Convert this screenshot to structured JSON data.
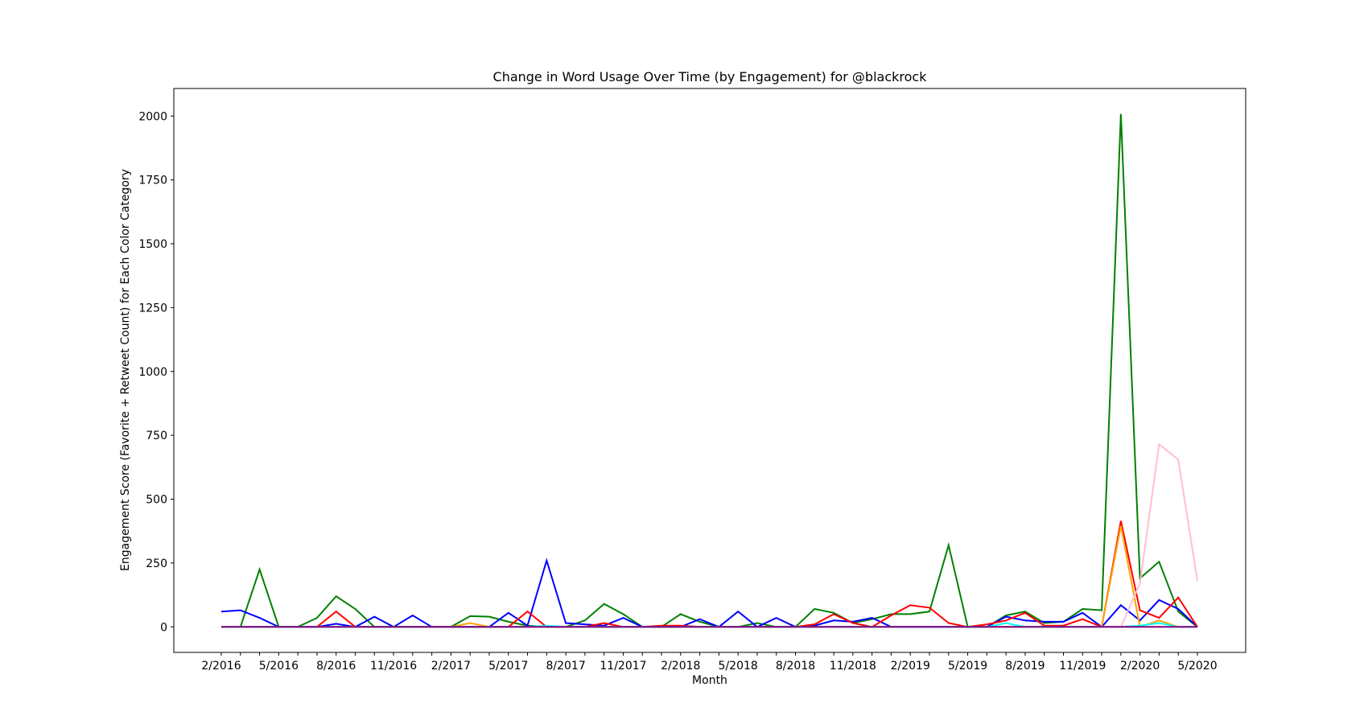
{
  "chart_data": {
    "type": "line",
    "title": "Change in Word Usage Over Time (by Engagement) for @blackrock",
    "xlabel": "Month",
    "ylabel": "Engagement Score (Favorite + Retweet Count) for Each Color Category",
    "categories": [
      "2/2016",
      null,
      null,
      "5/2016",
      null,
      null,
      "8/2016",
      null,
      null,
      "11/2016",
      null,
      null,
      "2/2017",
      null,
      null,
      "5/2017",
      null,
      null,
      "8/2017",
      null,
      null,
      "11/2017",
      null,
      null,
      "2/2018",
      null,
      null,
      "5/2018",
      null,
      null,
      "8/2018",
      null,
      null,
      "11/2018",
      null,
      null,
      "2/2019",
      null,
      null,
      "5/2019",
      null,
      null,
      "8/2019",
      null,
      null,
      "11/2019",
      null,
      null,
      "2/2020",
      null,
      null,
      "5/2020"
    ],
    "ylim": [
      -100,
      2108
    ],
    "yticks": [
      0,
      250,
      500,
      750,
      1000,
      1250,
      1500,
      1750,
      2000
    ],
    "grid": false,
    "series": [
      {
        "color": "green",
        "values": [
          null,
          0,
          225,
          0,
          0,
          35,
          120,
          70,
          0,
          0,
          0,
          0,
          0,
          42,
          40,
          20,
          5,
          0,
          0,
          25,
          90,
          50,
          0,
          0,
          50,
          20,
          0,
          0,
          15,
          0,
          0,
          70,
          55,
          15,
          30,
          50,
          50,
          60,
          320,
          0,
          0,
          45,
          60,
          15,
          20,
          70,
          65,
          2008,
          190,
          255,
          60,
          0
        ]
      },
      {
        "color": "blue",
        "values": [
          60,
          65,
          35,
          0,
          0,
          0,
          12,
          0,
          40,
          0,
          45,
          0,
          0,
          0,
          0,
          55,
          5,
          260,
          15,
          10,
          5,
          35,
          0,
          0,
          0,
          30,
          0,
          60,
          0,
          35,
          0,
          5,
          25,
          20,
          35,
          0,
          0,
          0,
          0,
          0,
          0,
          40,
          25,
          20,
          20,
          55,
          0,
          85,
          25,
          105,
          70,
          0
        ]
      },
      {
        "color": "red",
        "values": [
          0,
          0,
          0,
          0,
          0,
          0,
          60,
          0,
          0,
          0,
          0,
          0,
          0,
          0,
          0,
          0,
          60,
          0,
          0,
          0,
          15,
          0,
          0,
          5,
          5,
          0,
          0,
          0,
          0,
          0,
          0,
          10,
          50,
          15,
          0,
          45,
          85,
          75,
          15,
          0,
          10,
          25,
          55,
          5,
          5,
          30,
          0,
          415,
          65,
          35,
          115,
          0
        ]
      },
      {
        "color": "orange",
        "values": [
          0,
          0,
          0,
          0,
          0,
          0,
          0,
          0,
          0,
          0,
          0,
          0,
          0,
          15,
          0,
          0,
          0,
          0,
          0,
          0,
          0,
          0,
          0,
          0,
          0,
          0,
          0,
          0,
          0,
          0,
          0,
          0,
          0,
          0,
          0,
          0,
          0,
          0,
          0,
          0,
          0,
          0,
          0,
          0,
          0,
          0,
          0,
          395,
          0,
          25,
          0,
          0
        ]
      },
      {
        "color": "cyan",
        "values": [
          0,
          0,
          0,
          0,
          0,
          0,
          0,
          0,
          0,
          0,
          0,
          0,
          0,
          0,
          0,
          0,
          0,
          5,
          0,
          0,
          0,
          0,
          0,
          0,
          0,
          0,
          0,
          0,
          0,
          0,
          0,
          0,
          0,
          0,
          0,
          0,
          0,
          0,
          0,
          0,
          0,
          15,
          0,
          0,
          0,
          0,
          0,
          0,
          5,
          15,
          0,
          0
        ]
      },
      {
        "color": "pink",
        "values": [
          null,
          null,
          null,
          null,
          null,
          null,
          null,
          null,
          null,
          null,
          null,
          null,
          null,
          null,
          null,
          null,
          null,
          null,
          null,
          null,
          null,
          null,
          null,
          null,
          null,
          null,
          null,
          null,
          null,
          null,
          null,
          null,
          null,
          null,
          null,
          null,
          null,
          null,
          null,
          null,
          null,
          null,
          null,
          null,
          null,
          null,
          0,
          0,
          170,
          715,
          655,
          180
        ]
      },
      {
        "color": "purple",
        "values": [
          0,
          0,
          0,
          0,
          0,
          0,
          0,
          0,
          0,
          0,
          0,
          0,
          0,
          0,
          0,
          0,
          0,
          0,
          0,
          0,
          0,
          0,
          0,
          0,
          0,
          0,
          0,
          0,
          0,
          0,
          0,
          0,
          0,
          0,
          0,
          0,
          0,
          0,
          0,
          0,
          0,
          0,
          0,
          0,
          0,
          0,
          0,
          0,
          0,
          0,
          0,
          0
        ]
      }
    ]
  }
}
